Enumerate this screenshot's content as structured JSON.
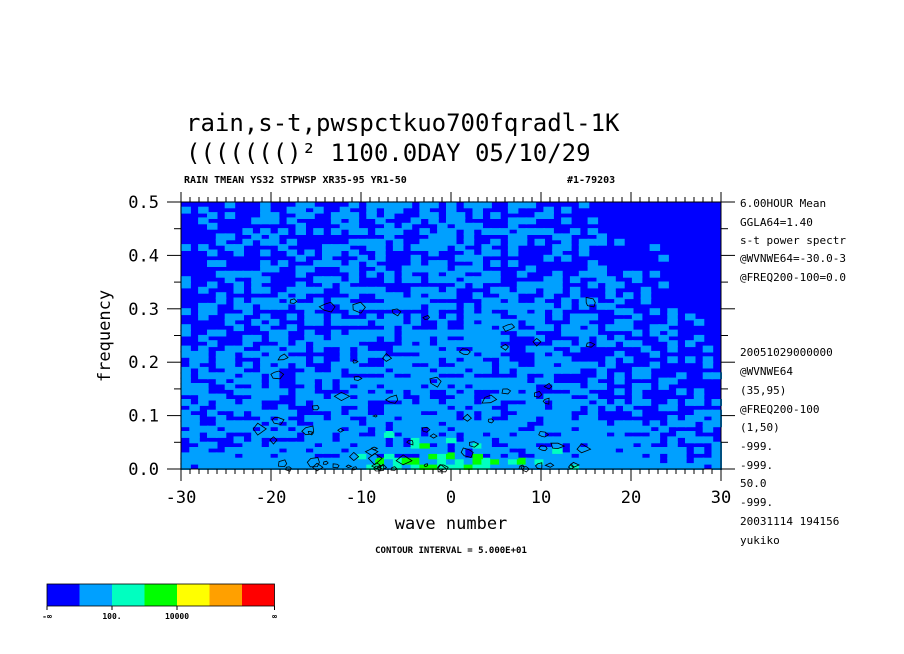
{
  "chart_data": {
    "type": "heatmap",
    "title": "rain,s-t,pwspctkuo700fqradl-1K",
    "subtitle": "((((((()²    1100.0DAY 05/10/29",
    "header_line": "RAIN TMEAN YS32 STPWSP XR35-95 YR1-50",
    "header_id": "#1-79203",
    "xlabel": "wave number",
    "ylabel": "frequency",
    "xlim": [
      -30,
      30
    ],
    "ylim": [
      0.0,
      0.5
    ],
    "x_ticks": [
      "-30",
      "-20",
      "-10",
      "0",
      "10",
      "20",
      "30"
    ],
    "y_ticks": [
      "0.0",
      "0.1",
      "0.2",
      "0.3",
      "0.4",
      "0.5"
    ],
    "contour_interval": "CONTOUR INTERVAL = 5.000E+01",
    "legend": {
      "colors": [
        "#0000ff",
        "#00a0ff",
        "#00ffc0",
        "#00ff00",
        "#ffff00",
        "#ffa000",
        "#ff0000"
      ],
      "tick_labels": [
        "-∞",
        "100.",
        "10000",
        "∞"
      ]
    },
    "grid": false
  },
  "side_info": {
    "top": [
      "6.00HOUR Mean",
      "GGLA64=1.40",
      "s-t power spectr",
      "@WVNWE64=-30.0-3",
      "@FREQ200-100=0.0"
    ],
    "bottom": [
      "20051029000000",
      "@WVNWE64",
      "(35,95)",
      "@FREQ200-100",
      "(1,50)",
      "-999.",
      "-999.",
      "50.0",
      "-999.",
      "20031114 194156",
      "yukiko"
    ]
  }
}
